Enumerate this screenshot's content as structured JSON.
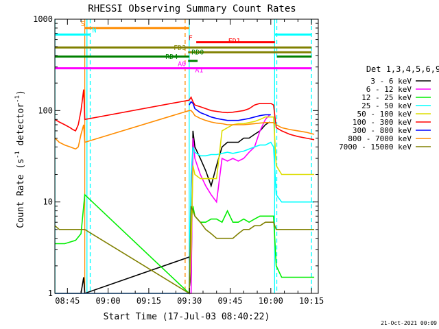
{
  "chart_data": {
    "type": "line",
    "title": "RHESSI Observing Summary Count Rates",
    "xlabel": "Start Time (17-Jul-03 08:40:22)",
    "ylabel_main": "Count Rate (s",
    "ylabel_sup1": "-1",
    "ylabel_mid": " detector",
    "ylabel_sup2": "-1",
    "ylabel_end": ")",
    "yscale": "log",
    "ylim": [
      1,
      1000
    ],
    "xlim_min": [
      40.37,
      120
    ],
    "x_ticks": [
      {
        "m": 45,
        "label": "08:45"
      },
      {
        "m": 60,
        "label": "09:00"
      },
      {
        "m": 75,
        "label": "09:15"
      },
      {
        "m": 90,
        "label": "09:30"
      },
      {
        "m": 105,
        "label": "09:45"
      },
      {
        "m": 120,
        "label": "10:00"
      },
      {
        "m": 135,
        "label": "10:15"
      }
    ],
    "y_ticks": [
      {
        "v": 1,
        "label": "1"
      },
      {
        "v": 10,
        "label": "10"
      },
      {
        "v": 100,
        "label": "100"
      },
      {
        "v": 1000,
        "label": "1000"
      }
    ],
    "legend_title": "Det 1,3,4,5,6,9",
    "series": [
      {
        "name": "3 - 6 keV",
        "color": "#000000",
        "x": [
          40.4,
          44,
          48,
          50,
          51,
          51.4,
          90,
          90.6,
          91.3,
          92,
          94,
          96,
          98,
          100,
          102,
          104,
          106,
          108,
          110,
          112,
          114,
          116,
          118,
          119.6
        ],
        "y": [
          1,
          1,
          1,
          1,
          1.5,
          1,
          2.5,
          1.2,
          60,
          40,
          30,
          22,
          15,
          25,
          40,
          45,
          45,
          45,
          50,
          50,
          55,
          60,
          70,
          75
        ]
      },
      {
        "name": "6 - 12 keV",
        "color": "#ff00ff",
        "x": [
          40.4,
          44,
          48,
          51.4,
          89.9,
          90.6,
          91.3,
          92,
          94,
          96,
          98,
          100,
          102,
          104,
          106,
          108,
          110,
          112,
          114,
          116,
          118,
          119.6
        ],
        "y": [
          1,
          1,
          1,
          1,
          1,
          1,
          50,
          30,
          20,
          15,
          12,
          10,
          30,
          28,
          30,
          28,
          30,
          35,
          40,
          60,
          80,
          90
        ]
      },
      {
        "name": "12 - 25 keV",
        "color": "#00ee00",
        "x": [
          40.4,
          44,
          48,
          50,
          51.4,
          89.9,
          90.6,
          91.3,
          92,
          94,
          96,
          98,
          100,
          102,
          104,
          106,
          108,
          110,
          112,
          114,
          116,
          118,
          120,
          121,
          122,
          124,
          127,
          130,
          133,
          136
        ],
        "y": [
          3.5,
          3.5,
          3.8,
          4.5,
          12,
          1,
          6,
          9,
          7,
          6,
          6,
          6.5,
          6.5,
          6,
          8,
          6,
          6,
          6.5,
          6,
          6.5,
          7,
          7,
          7,
          7,
          2,
          1.5,
          1.5,
          1.5,
          1.5,
          1.5
        ]
      },
      {
        "name": "25 - 50 keV",
        "color": "#00ffff",
        "x": [
          40.4,
          44,
          48,
          50,
          51.4,
          89.9,
          90.6,
          91.3,
          92,
          94,
          96,
          98,
          100,
          102,
          104,
          106,
          108,
          110,
          112,
          114,
          116,
          118,
          120,
          121,
          122,
          124,
          127,
          130,
          133,
          136
        ],
        "y": [
          1,
          1,
          1,
          1,
          1,
          1,
          20,
          40,
          35,
          32,
          32,
          33,
          33,
          34,
          35,
          34,
          35,
          36,
          38,
          40,
          42,
          42,
          45,
          40,
          12,
          10,
          10,
          10,
          10,
          10
        ]
      },
      {
        "name": "50 - 100 keV",
        "color": "#dddd00",
        "x": [
          89.9,
          90.6,
          91.3,
          92,
          94,
          96,
          98,
          100,
          102,
          104,
          106,
          108,
          110,
          112,
          114,
          116,
          118,
          120,
          121,
          122,
          124,
          127,
          130,
          133,
          136
        ],
        "y": [
          1,
          3,
          25,
          20,
          18,
          18,
          18,
          18,
          60,
          65,
          70,
          72,
          72,
          74,
          76,
          80,
          85,
          85,
          85,
          25,
          20,
          20,
          20,
          20,
          20
        ]
      },
      {
        "name": "100 - 300 keV",
        "color": "#ff0000",
        "x": [
          40.4,
          42,
          44,
          46,
          47,
          48,
          49,
          50,
          51,
          51.4,
          89.9,
          90.6,
          91.3,
          92,
          94,
          96,
          98,
          100,
          102,
          104,
          106,
          108,
          110,
          112,
          114,
          116,
          118,
          120,
          121,
          122,
          124,
          127,
          130,
          133,
          136
        ],
        "y": [
          80,
          75,
          70,
          65,
          62,
          60,
          70,
          100,
          170,
          80,
          130,
          140,
          125,
          115,
          110,
          105,
          100,
          98,
          96,
          95,
          96,
          98,
          100,
          105,
          115,
          120,
          120,
          120,
          115,
          65,
          60,
          55,
          52,
          50,
          48
        ]
      },
      {
        "name": "300 - 800 keV",
        "color": "#0000ff",
        "x": [
          89.9,
          90.6,
          91.3,
          92,
          94,
          96,
          98,
          100,
          102,
          104,
          106,
          108,
          110,
          112,
          114,
          116,
          118,
          120
        ],
        "y": [
          115,
          125,
          120,
          105,
          95,
          90,
          85,
          82,
          80,
          78,
          78,
          78,
          80,
          82,
          85,
          88,
          90,
          90
        ]
      },
      {
        "name": "800 - 7000 keV",
        "color": "#ff8c00",
        "x": [
          40.4,
          42,
          44,
          46,
          48,
          49,
          50,
          51,
          51.4,
          89.9,
          90.6,
          91.3,
          92,
          94,
          96,
          98,
          100,
          102,
          104,
          106,
          108,
          110,
          112,
          114,
          116,
          118,
          120,
          121,
          122,
          124,
          127,
          130,
          133,
          136
        ],
        "y": [
          50,
          45,
          42,
          40,
          38,
          40,
          55,
          70,
          45,
          100,
          100,
          95,
          88,
          82,
          78,
          75,
          73,
          72,
          70,
          70,
          70,
          70,
          71,
          72,
          73,
          74,
          74,
          74,
          70,
          65,
          62,
          60,
          58,
          55
        ]
      },
      {
        "name": "7000 - 15000 keV",
        "color": "#808000",
        "x": [
          40.4,
          42,
          44,
          46,
          48,
          50,
          51.4,
          89.9,
          90.6,
          91.3,
          92,
          94,
          96,
          98,
          100,
          102,
          104,
          106,
          108,
          110,
          112,
          114,
          116,
          118,
          120,
          121,
          122,
          124,
          127,
          130,
          133,
          136
        ],
        "y": [
          5.5,
          5,
          5,
          5,
          5,
          5,
          5,
          1,
          9,
          8,
          7,
          6,
          5,
          4.5,
          4,
          4,
          4,
          4,
          4.5,
          5,
          5,
          5.5,
          5.5,
          6,
          6,
          6,
          5,
          5,
          5,
          5,
          5,
          5
        ]
      }
    ],
    "flag_bars": [
      {
        "label": "S",
        "color": "#ff8c00",
        "y": 800,
        "segments": [
          [
            51.4,
            89.9
          ]
        ],
        "label_m": 52.2,
        "label_side": "left"
      },
      {
        "label": "N",
        "color": "#00ffff",
        "y": 680,
        "segments": [
          [
            40.4,
            53.4
          ],
          [
            121.4,
            135
          ]
        ],
        "label_m": 53.4,
        "label_side": "right"
      },
      {
        "label": "F",
        "color": "#ff0000",
        "y": 560,
        "segments": [
          [
            92.5,
            121.5
          ]
        ],
        "label_m": 91.9,
        "label_side": "left"
      },
      {
        "label": "FD1",
        "color": "#ff0000",
        "y": 520,
        "segments": [],
        "label_m": 103.5,
        "label_side": "right"
      },
      {
        "label": "",
        "color": "#808000",
        "y": 490,
        "segments": [
          [
            40.4,
            135
          ]
        ],
        "label_m": 0,
        "label_side": "none"
      },
      {
        "label": "FD3",
        "color": "#808000",
        "y": 435,
        "segments": [
          [
            89.5,
            135
          ]
        ],
        "label_m": 89.5,
        "label_side": "left"
      },
      {
        "label": "RD0",
        "color": "#008000",
        "y": 390,
        "segments": [
          [
            40.4,
            90
          ],
          [
            122.3,
            135
          ]
        ],
        "label_m": 90,
        "label_side": "right"
      },
      {
        "label": "RD4",
        "color": "#008000",
        "y": 350,
        "segments": [
          [
            89.5,
            93
          ]
        ],
        "label_m": 86.5,
        "label_side": "left"
      },
      {
        "label": "A0",
        "color": "#ff00ff",
        "y": 290,
        "segments": [
          [
            40.4,
            135
          ]
        ],
        "label_m": 89.5,
        "label_side": "left"
      },
      {
        "label": "A1",
        "color": "#ff00ff",
        "y": 250,
        "segments": [],
        "label_m": 91.3,
        "label_side": "right"
      }
    ],
    "vlines": [
      {
        "m": 40.4,
        "color": "#00ffff",
        "dash": false
      },
      {
        "m": 51.4,
        "color": "#ff8c00",
        "dash": false
      },
      {
        "m": 52.2,
        "color": "#00ffff",
        "dash": false
      },
      {
        "m": 53.4,
        "color": "#00ffff",
        "dash": true
      },
      {
        "m": 88.4,
        "color": "#ff8c00",
        "dash": true
      },
      {
        "m": 89.9,
        "color": "#00ffff",
        "dash": false
      },
      {
        "m": 121.4,
        "color": "#00ffff",
        "dash": false
      },
      {
        "m": 122.2,
        "color": "#00ffff",
        "dash": true
      },
      {
        "m": 135,
        "color": "#00ffff",
        "dash": true
      }
    ],
    "timestamp": "21-Oct-2021 00:09"
  }
}
